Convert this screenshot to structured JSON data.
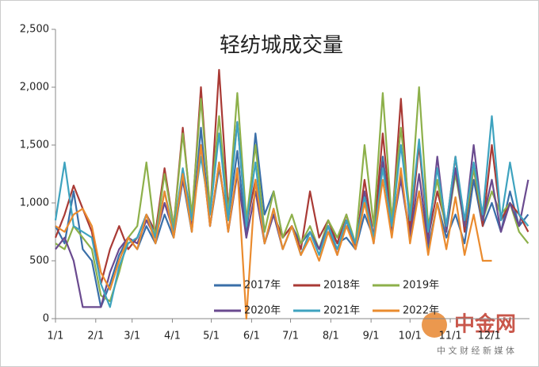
{
  "chart_data": {
    "type": "line",
    "title": "轻纺城成交量",
    "x": [
      0,
      7,
      14,
      21,
      28,
      35,
      42,
      49,
      56,
      63,
      70,
      77,
      84,
      91,
      98,
      105,
      112,
      119,
      126,
      133,
      140,
      147,
      154,
      161,
      168,
      175,
      182,
      189,
      196,
      203,
      210,
      217,
      224,
      231,
      238,
      245,
      252,
      259,
      266,
      273,
      280,
      287,
      294,
      301,
      308,
      315,
      322,
      329,
      336,
      343,
      350,
      357,
      364
    ],
    "xlim": [
      0,
      365
    ],
    "xticks": [
      {
        "value": 0,
        "label": "1/1"
      },
      {
        "value": 31,
        "label": "2/1"
      },
      {
        "value": 59,
        "label": "3/1"
      },
      {
        "value": 90,
        "label": "4/1"
      },
      {
        "value": 120,
        "label": "5/1"
      },
      {
        "value": 151,
        "label": "6/1"
      },
      {
        "value": 181,
        "label": "7/1"
      },
      {
        "value": 212,
        "label": "8/1"
      },
      {
        "value": 243,
        "label": "9/1"
      },
      {
        "value": 273,
        "label": "10/1"
      },
      {
        "value": 304,
        "label": "11/1"
      },
      {
        "value": 334,
        "label": "12/1"
      }
    ],
    "ylim": [
      0,
      2500
    ],
    "yticks": [
      0,
      500,
      {
        "value": 1000,
        "label": "1,000"
      },
      {
        "value": 1500,
        "label": "1,500"
      },
      {
        "value": 2000,
        "label": "2,000"
      },
      {
        "value": 2500,
        "label": "2,500"
      }
    ],
    "series": [
      {
        "name": "2017年",
        "color": "#3a6fa8",
        "values": [
          800,
          650,
          1100,
          600,
          500,
          100,
          300,
          550,
          700,
          600,
          800,
          650,
          900,
          700,
          1200,
          750,
          1650,
          800,
          1300,
          850,
          1450,
          700,
          1600,
          900,
          1100,
          700,
          800,
          650,
          750,
          600,
          800,
          650,
          700,
          600,
          900,
          700,
          1400,
          800,
          1250,
          700,
          1100,
          600,
          1000,
          700,
          900,
          650,
          1200,
          800,
          1000,
          750,
          1100,
          800,
          900
        ]
      },
      {
        "name": "2018年",
        "color": "#a93a35",
        "values": [
          700,
          900,
          1150,
          950,
          750,
          300,
          600,
          800,
          600,
          700,
          900,
          750,
          1300,
          800,
          1650,
          850,
          2000,
          900,
          2150,
          950,
          1700,
          800,
          1200,
          650,
          900,
          700,
          800,
          600,
          1100,
          700,
          850,
          650,
          900,
          600,
          1200,
          700,
          1600,
          800,
          1900,
          750,
          1500,
          700,
          1100,
          800,
          1400,
          750,
          1300,
          800,
          1500,
          850,
          1000,
          900,
          750
        ]
      },
      {
        "name": "2019年",
        "color": "#8db04a",
        "values": [
          650,
          600,
          800,
          700,
          600,
          200,
          150,
          400,
          700,
          800,
          1350,
          700,
          1250,
          800,
          1600,
          900,
          1900,
          950,
          1750,
          900,
          1950,
          850,
          1500,
          750,
          1100,
          700,
          900,
          650,
          800,
          600,
          850,
          700,
          900,
          650,
          1500,
          800,
          1950,
          850,
          1650,
          900,
          2000,
          800,
          1200,
          750,
          1250,
          800,
          1300,
          850,
          1100,
          900,
          1000,
          750,
          650
        ]
      },
      {
        "name": "2020年",
        "color": "#6a4a8f",
        "values": [
          600,
          700,
          500,
          100,
          100,
          100,
          400,
          600,
          700,
          650,
          850,
          700,
          1000,
          750,
          1200,
          800,
          1500,
          800,
          1350,
          750,
          1250,
          700,
          1100,
          650,
          900,
          600,
          800,
          550,
          750,
          600,
          800,
          550,
          850,
          600,
          1100,
          650,
          1350,
          750,
          1200,
          700,
          1250,
          650,
          1400,
          750,
          1300,
          800,
          1500,
          850,
          1200,
          750,
          1000,
          800,
          1200
        ]
      },
      {
        "name": "2021年",
        "color": "#3ea3bf",
        "values": [
          850,
          1350,
          800,
          750,
          700,
          300,
          100,
          450,
          650,
          700,
          900,
          700,
          1100,
          750,
          1300,
          850,
          1400,
          900,
          1600,
          850,
          1700,
          800,
          1350,
          650,
          950,
          600,
          800,
          550,
          750,
          550,
          800,
          600,
          850,
          650,
          1050,
          700,
          1300,
          800,
          1500,
          850,
          1550,
          750,
          1300,
          800,
          1400,
          850,
          1350,
          900,
          1750,
          850,
          1350,
          900,
          800
        ]
      },
      {
        "name": "2022年",
        "color": "#ea8b2e",
        "values": [
          800,
          750,
          900,
          950,
          800,
          400,
          250,
          500,
          700,
          600,
          900,
          650,
          1100,
          700,
          1250,
          750,
          1500,
          800,
          1350,
          750,
          1300,
          0,
          1200,
          650,
          950,
          600,
          800,
          550,
          700,
          500,
          750,
          550,
          800,
          600,
          1000,
          650,
          1200,
          700,
          1300,
          650,
          1100,
          550,
          1000,
          600,
          1050,
          550,
          900,
          500,
          500,
          null,
          null,
          null,
          null
        ]
      }
    ],
    "logo": "中金网",
    "logo_subtitle": "中 文 财 经 新 媒 体"
  }
}
